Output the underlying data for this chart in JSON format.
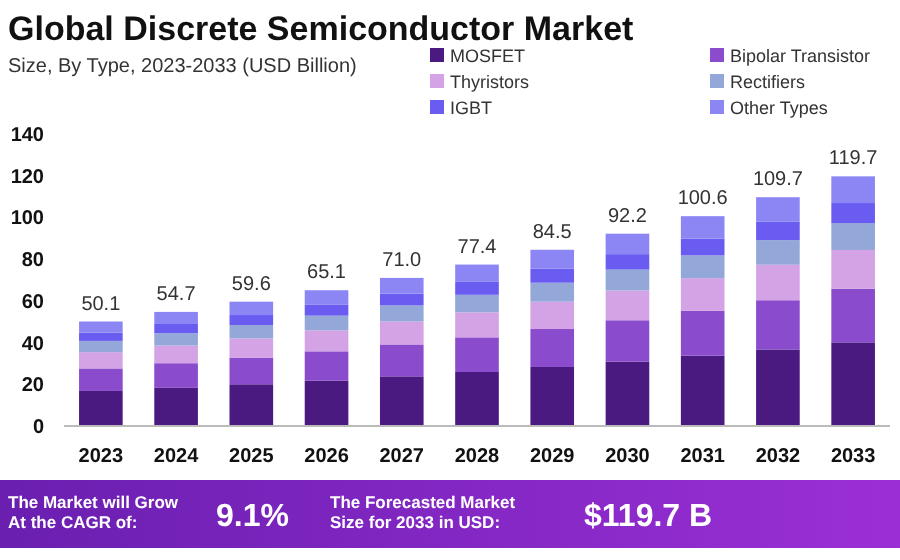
{
  "chart_data": {
    "type": "bar",
    "stacked": true,
    "title": "Global Discrete Semiconductor Market",
    "subtitle": "Size, By Type, 2023-2033 (USD Billion)",
    "categories": [
      "2023",
      "2024",
      "2025",
      "2026",
      "2027",
      "2028",
      "2029",
      "2030",
      "2031",
      "2032",
      "2033"
    ],
    "series": [
      {
        "name": "MOSFET",
        "color": "#4a1a80",
        "values": [
          16.8,
          18.3,
          20.0,
          21.8,
          23.8,
          25.9,
          28.3,
          30.9,
          33.7,
          36.7,
          40.1
        ]
      },
      {
        "name": "Bipolar Transistor",
        "color": "#8a4ccc",
        "values": [
          10.8,
          11.8,
          12.8,
          14.0,
          15.3,
          16.6,
          18.2,
          19.8,
          21.6,
          23.6,
          25.7
        ]
      },
      {
        "name": "Thyristors",
        "color": "#d4a3e6",
        "values": [
          7.8,
          8.5,
          9.2,
          10.1,
          11.0,
          12.0,
          13.1,
          14.3,
          15.6,
          17.0,
          18.6
        ]
      },
      {
        "name": "Rectifiers",
        "color": "#93a8d8",
        "values": [
          5.4,
          5.9,
          6.4,
          7.0,
          7.7,
          8.4,
          9.1,
          10.0,
          10.9,
          11.8,
          12.9
        ]
      },
      {
        "name": "IGBT",
        "color": "#6a5cf0",
        "values": [
          4.0,
          4.4,
          4.8,
          5.2,
          5.7,
          6.2,
          6.8,
          7.4,
          8.0,
          8.8,
          9.6
        ]
      },
      {
        "name": "Other Types",
        "color": "#8c86f5",
        "values": [
          5.3,
          5.8,
          6.4,
          7.0,
          7.5,
          8.3,
          9.0,
          9.8,
          10.8,
          11.8,
          12.8
        ]
      }
    ],
    "totals": [
      "50.1",
      "54.7",
      "59.6",
      "65.1",
      "71.0",
      "77.4",
      "84.5",
      "92.2",
      "100.6",
      "109.7",
      "119.7"
    ],
    "ylim": [
      0,
      140
    ],
    "yticks": [
      0,
      20,
      40,
      60,
      80,
      100,
      120,
      140
    ],
    "grid": false,
    "legend": "top right",
    "annotations": [
      "The Market will Grow At the CAGR of:",
      "9.1%",
      "The Forecasted Market Size for 2033 in USD:",
      "$119.7 B"
    ]
  }
}
